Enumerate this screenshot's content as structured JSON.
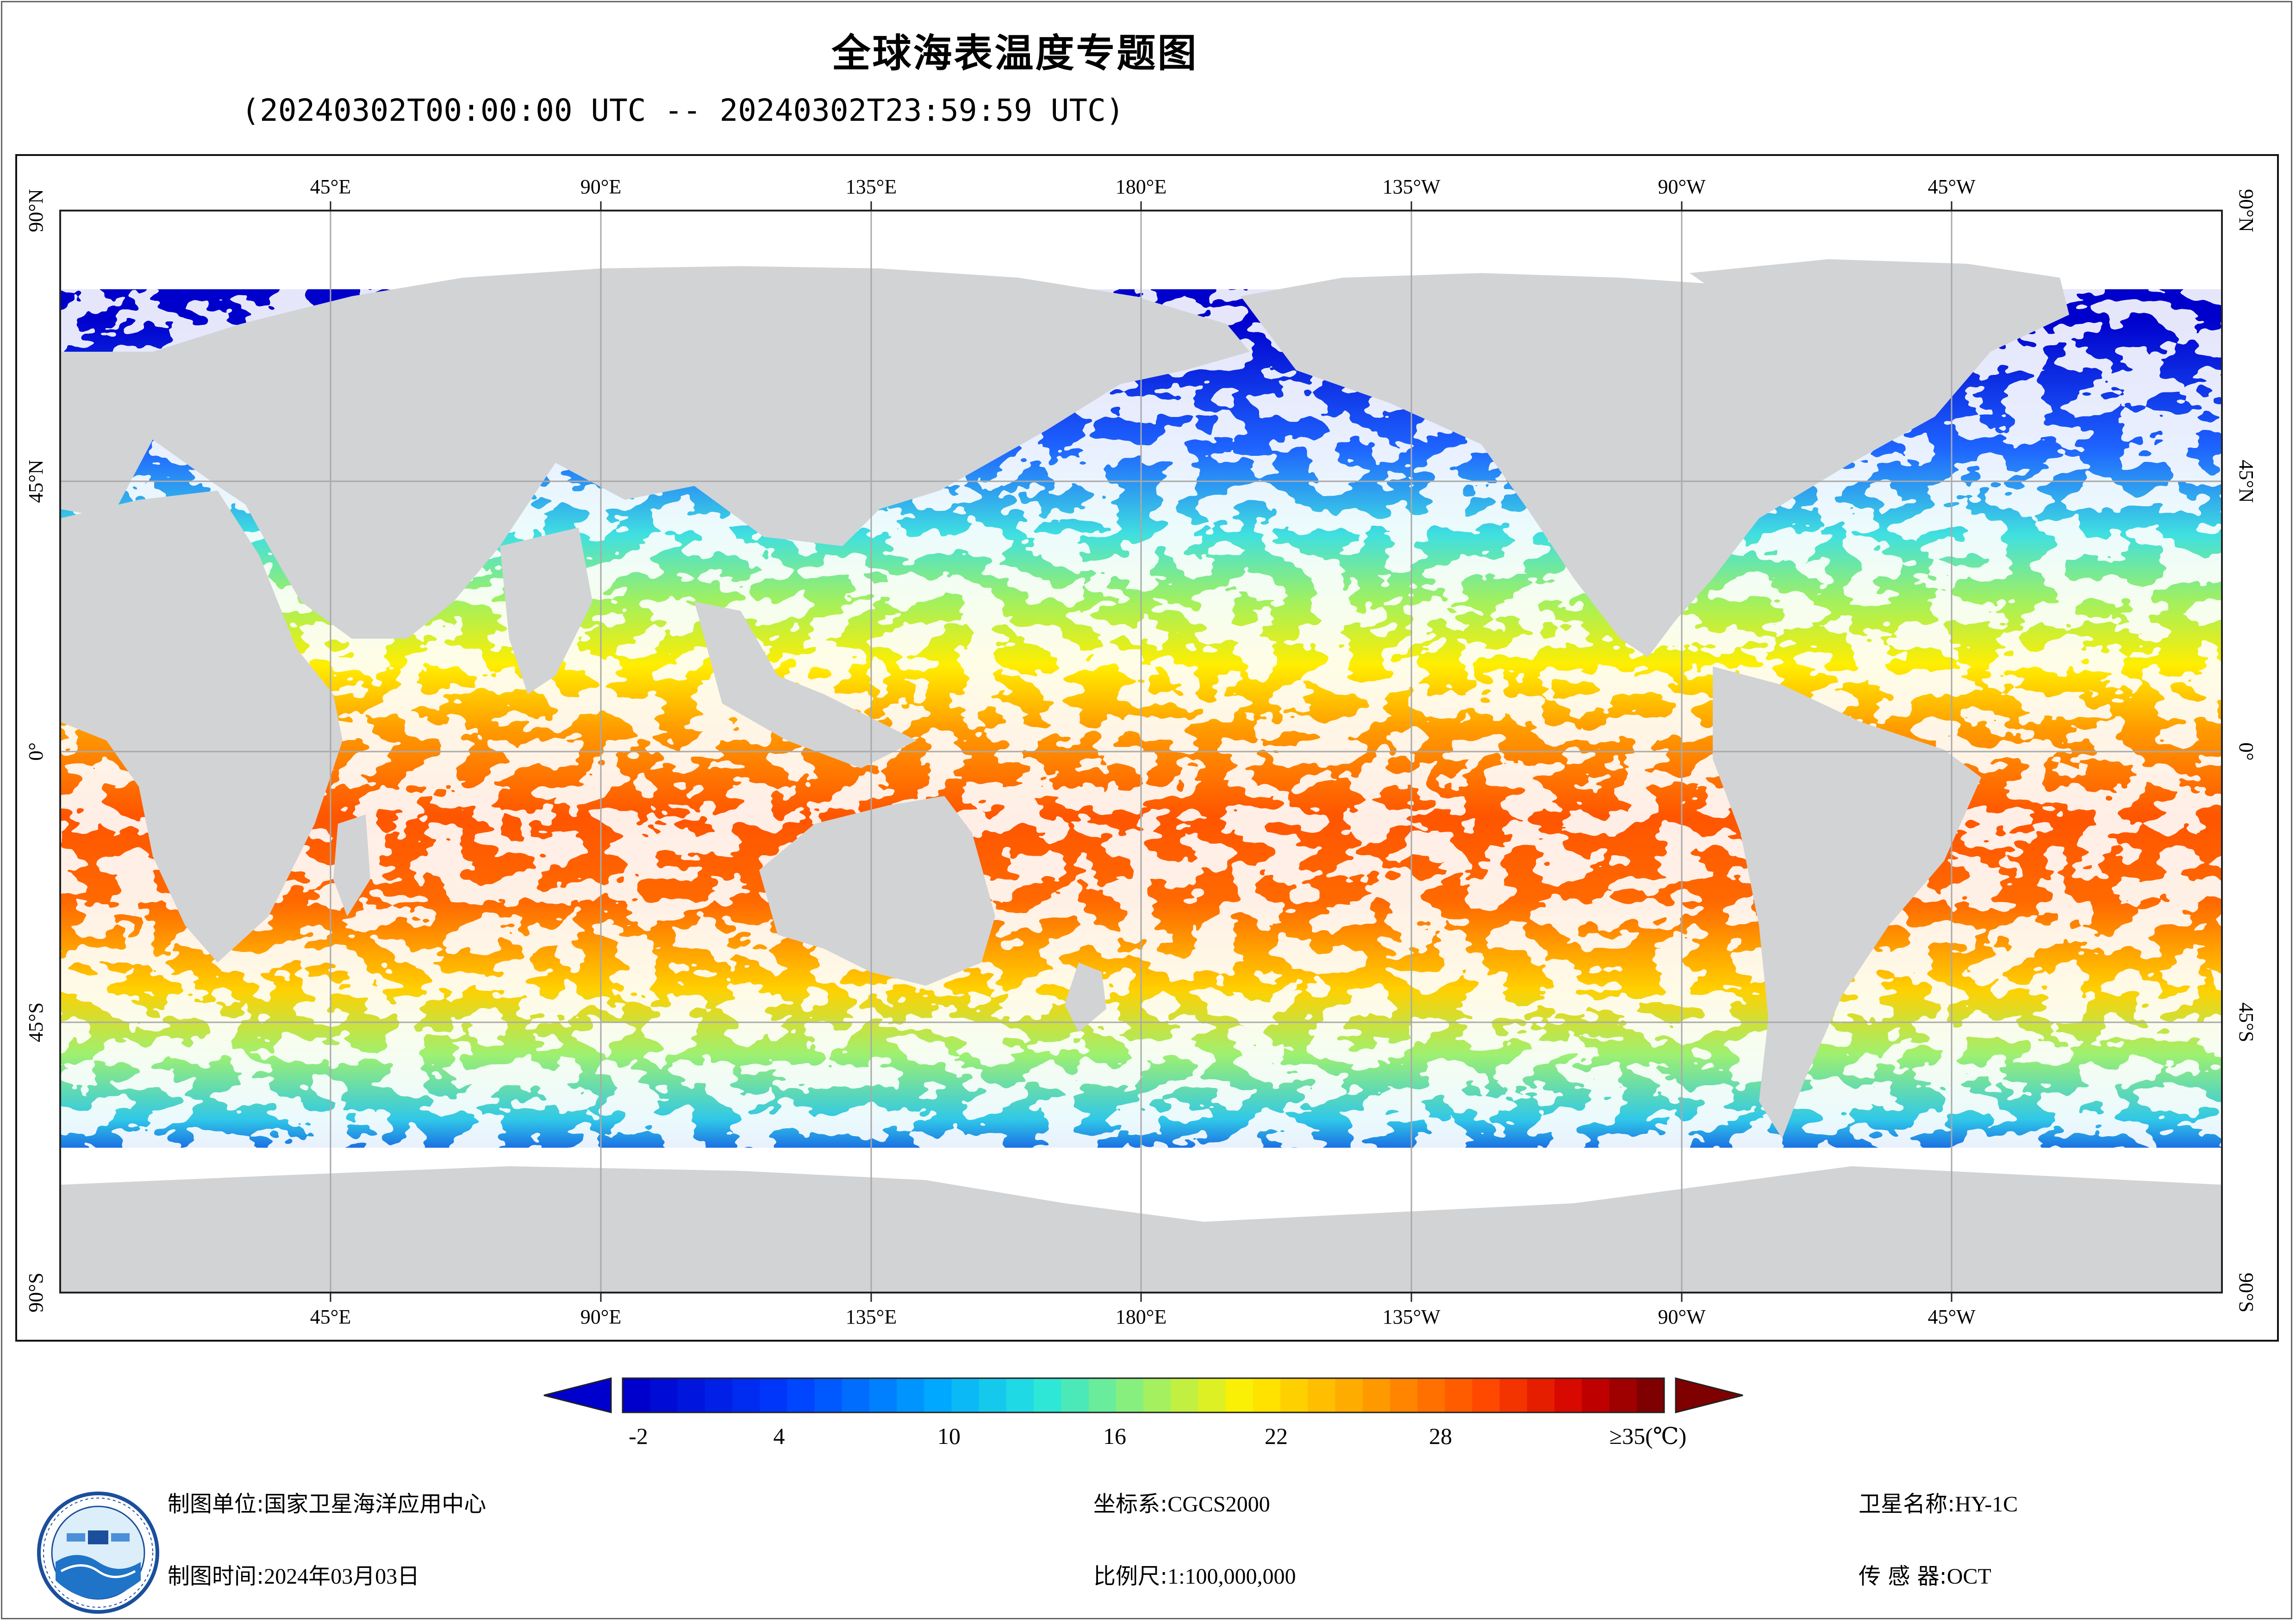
{
  "title": "全球海表温度专题图",
  "subtitle": "(20240302T00:00:00 UTC -- 20240302T23:59:59 UTC)",
  "map": {
    "top_lon_labels": [
      "45°E",
      "90°E",
      "135°E",
      "180°E",
      "135°W",
      "90°W",
      "45°W"
    ],
    "bottom_lon_labels": [
      "45°E",
      "90°E",
      "135°E",
      "180°E",
      "135°W",
      "90°W",
      "45°W"
    ],
    "lat_labels": [
      "90°N",
      "45°N",
      "0°",
      "45°S",
      "90°S"
    ],
    "land_color": "#d2d3d5",
    "nodata_color": "#ffffff",
    "grid_color": "#a9a9a9"
  },
  "colorbar": {
    "min": -2,
    "max": 35,
    "unit": "(℃)",
    "tick_labels": [
      "-2",
      "4",
      "10",
      "16",
      "22",
      "28",
      "≥35(℃)"
    ],
    "low_color": "#0000cd",
    "high_color": "#7f0000"
  },
  "footer": {
    "unit_label": "制图单位:",
    "unit_value": "国家卫星海洋应用中心",
    "time_label": "制图时间:",
    "time_value": "2024年03月03日",
    "crs_label": "坐标系:",
    "crs_value": "CGCS2000",
    "scale_label": "比例尺:",
    "scale_value": "1:100,000,000",
    "satellite_label": "卫星名称:",
    "satellite_value": "HY-1C",
    "sensor_label": "传 感 器:",
    "sensor_value": "OCT"
  }
}
